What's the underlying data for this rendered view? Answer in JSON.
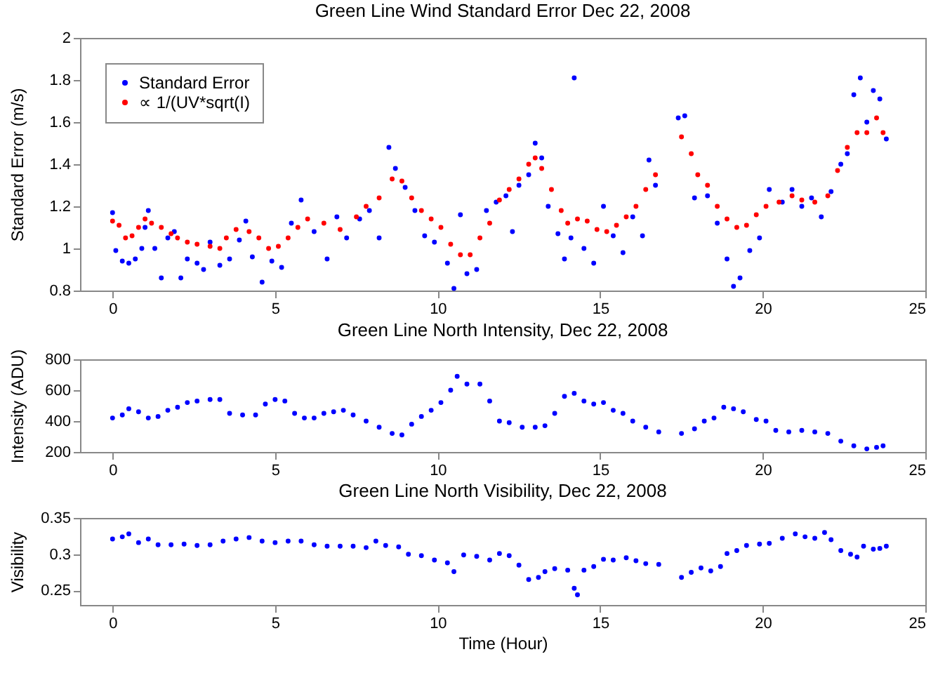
{
  "chart_data": [
    {
      "type": "scatter",
      "title": "Green Line Wind Standard Error Dec 22, 2008",
      "ylabel": "Standard Error (m/s)",
      "xlim": [
        -1,
        25
      ],
      "xticks": [
        0,
        5,
        10,
        15,
        20,
        25
      ],
      "ylim": [
        0.8,
        2
      ],
      "yticks": [
        0.8,
        1,
        1.2,
        1.4,
        1.6,
        1.8,
        2
      ],
      "grid": false,
      "legend": "top left",
      "marker": "circle",
      "series": [
        {
          "name": "Standard Error",
          "color": "#0000ff",
          "x": [
            0,
            0.1,
            0.3,
            0.5,
            0.7,
            0.9,
            1.0,
            1.1,
            1.3,
            1.5,
            1.7,
            1.9,
            2.1,
            2.3,
            2.6,
            2.8,
            3.0,
            3.3,
            3.6,
            3.9,
            4.1,
            4.3,
            4.6,
            4.9,
            5.2,
            5.5,
            5.8,
            6.2,
            6.6,
            6.9,
            7.2,
            7.6,
            7.9,
            8.2,
            8.5,
            8.7,
            9.0,
            9.3,
            9.6,
            9.9,
            10.3,
            10.5,
            10.7,
            10.9,
            11.2,
            11.5,
            11.8,
            12.1,
            12.3,
            12.5,
            12.8,
            13.0,
            13.2,
            13.4,
            13.7,
            13.9,
            14.1,
            14.2,
            14.5,
            14.8,
            15.1,
            15.4,
            15.7,
            16.0,
            16.3,
            16.5,
            16.7,
            17.4,
            17.6,
            17.9,
            18.3,
            18.6,
            18.9,
            19.1,
            19.3,
            19.6,
            19.9,
            20.2,
            20.6,
            20.9,
            21.2,
            21.5,
            21.8,
            22.1,
            22.4,
            22.6,
            22.8,
            23.0,
            23.2,
            23.4,
            23.6,
            23.8
          ],
          "values": [
            1.17,
            0.99,
            0.94,
            0.93,
            0.95,
            1.0,
            1.1,
            1.18,
            1.0,
            0.86,
            1.05,
            1.08,
            0.86,
            0.95,
            0.93,
            0.9,
            1.03,
            0.92,
            0.95,
            1.04,
            1.13,
            0.96,
            0.84,
            0.94,
            0.91,
            1.12,
            1.23,
            1.08,
            0.95,
            1.15,
            1.05,
            1.14,
            1.18,
            1.05,
            1.48,
            1.38,
            1.29,
            1.18,
            1.06,
            1.03,
            0.93,
            0.81,
            1.16,
            0.88,
            0.9,
            1.18,
            1.22,
            1.25,
            1.08,
            1.3,
            1.35,
            1.5,
            1.43,
            1.2,
            1.07,
            0.95,
            1.05,
            1.81,
            1.0,
            0.93,
            1.2,
            1.06,
            0.98,
            1.15,
            1.06,
            1.42,
            1.3,
            1.62,
            1.63,
            1.24,
            1.25,
            1.12,
            0.95,
            0.82,
            0.86,
            0.99,
            1.05,
            1.28,
            1.22,
            1.28,
            1.2,
            1.24,
            1.15,
            1.27,
            1.4,
            1.45,
            1.73,
            1.81,
            1.6,
            1.75,
            1.71,
            1.52
          ]
        },
        {
          "name": "∝ 1/(UV*sqrt(I)",
          "color": "#ff0000",
          "x": [
            0,
            0.2,
            0.4,
            0.6,
            0.8,
            1.0,
            1.2,
            1.5,
            1.8,
            2.0,
            2.3,
            2.6,
            3.0,
            3.3,
            3.5,
            3.8,
            4.2,
            4.5,
            4.8,
            5.1,
            5.4,
            5.7,
            6.0,
            6.5,
            7.0,
            7.5,
            7.8,
            8.2,
            8.6,
            8.9,
            9.2,
            9.5,
            9.8,
            10.1,
            10.4,
            10.7,
            11.0,
            11.3,
            11.6,
            11.9,
            12.2,
            12.5,
            12.8,
            13.0,
            13.2,
            13.5,
            13.8,
            14.0,
            14.3,
            14.6,
            14.9,
            15.2,
            15.5,
            15.8,
            16.1,
            16.4,
            16.7,
            17.5,
            17.8,
            18.0,
            18.3,
            18.6,
            18.9,
            19.2,
            19.5,
            19.8,
            20.1,
            20.5,
            20.9,
            21.2,
            21.6,
            22.0,
            22.3,
            22.6,
            22.9,
            23.2,
            23.5,
            23.7
          ],
          "values": [
            1.13,
            1.11,
            1.05,
            1.06,
            1.1,
            1.14,
            1.12,
            1.1,
            1.07,
            1.05,
            1.03,
            1.02,
            1.01,
            1.0,
            1.05,
            1.09,
            1.08,
            1.05,
            1.0,
            1.01,
            1.05,
            1.1,
            1.14,
            1.12,
            1.09,
            1.15,
            1.2,
            1.24,
            1.33,
            1.32,
            1.24,
            1.18,
            1.14,
            1.1,
            1.02,
            0.97,
            0.97,
            1.05,
            1.12,
            1.23,
            1.28,
            1.33,
            1.4,
            1.43,
            1.38,
            1.28,
            1.18,
            1.12,
            1.14,
            1.13,
            1.09,
            1.08,
            1.11,
            1.15,
            1.2,
            1.28,
            1.35,
            1.53,
            1.45,
            1.35,
            1.3,
            1.2,
            1.14,
            1.1,
            1.11,
            1.16,
            1.2,
            1.22,
            1.25,
            1.23,
            1.22,
            1.25,
            1.37,
            1.48,
            1.55,
            1.55,
            1.62,
            1.55
          ]
        }
      ]
    },
    {
      "type": "scatter",
      "title": "Green Line North Intensity, Dec 22, 2008",
      "ylabel": "Intensity (ADU)",
      "xlim": [
        -1,
        25
      ],
      "xticks": [
        0,
        5,
        10,
        15,
        20,
        25
      ],
      "ylim": [
        200,
        800
      ],
      "yticks": [
        200,
        400,
        600,
        800
      ],
      "grid": false,
      "marker": "circle",
      "series": [
        {
          "color": "#0000ff",
          "x": [
            0,
            0.3,
            0.5,
            0.8,
            1.1,
            1.4,
            1.7,
            2.0,
            2.3,
            2.6,
            3.0,
            3.3,
            3.6,
            4.0,
            4.4,
            4.7,
            5.0,
            5.3,
            5.6,
            5.9,
            6.2,
            6.5,
            6.8,
            7.1,
            7.4,
            7.8,
            8.2,
            8.6,
            8.9,
            9.2,
            9.5,
            9.8,
            10.1,
            10.4,
            10.6,
            10.9,
            11.3,
            11.6,
            11.9,
            12.2,
            12.6,
            13.0,
            13.3,
            13.6,
            13.9,
            14.2,
            14.5,
            14.8,
            15.1,
            15.4,
            15.7,
            16.0,
            16.4,
            16.8,
            17.5,
            17.9,
            18.2,
            18.5,
            18.8,
            19.1,
            19.4,
            19.8,
            20.1,
            20.4,
            20.8,
            21.2,
            21.6,
            22.0,
            22.4,
            22.8,
            23.2,
            23.5,
            23.7
          ],
          "values": [
            420,
            440,
            480,
            460,
            420,
            430,
            470,
            490,
            520,
            530,
            540,
            540,
            450,
            440,
            440,
            510,
            540,
            530,
            450,
            420,
            420,
            450,
            460,
            470,
            440,
            400,
            360,
            320,
            310,
            380,
            430,
            470,
            520,
            600,
            690,
            640,
            640,
            530,
            400,
            390,
            360,
            360,
            370,
            450,
            560,
            580,
            530,
            510,
            520,
            470,
            450,
            400,
            360,
            330,
            320,
            350,
            400,
            420,
            490,
            480,
            460,
            410,
            400,
            340,
            330,
            340,
            330,
            320,
            270,
            240,
            220,
            230,
            240
          ]
        }
      ]
    },
    {
      "type": "scatter",
      "title": "Green Line North Visibility, Dec 22, 2008",
      "xlabel": "Time (Hour)",
      "ylabel": "Visibility",
      "xlim": [
        -1,
        25
      ],
      "xticks": [
        0,
        5,
        10,
        15,
        20,
        25
      ],
      "ylim": [
        0.23,
        0.35
      ],
      "yticks": [
        0.25,
        0.3,
        0.35
      ],
      "grid": false,
      "marker": "circle",
      "series": [
        {
          "color": "#0000ff",
          "x": [
            0,
            0.3,
            0.5,
            0.8,
            1.1,
            1.4,
            1.8,
            2.2,
            2.6,
            3.0,
            3.4,
            3.8,
            4.2,
            4.6,
            5.0,
            5.4,
            5.8,
            6.2,
            6.6,
            7.0,
            7.4,
            7.8,
            8.1,
            8.4,
            8.8,
            9.1,
            9.5,
            9.9,
            10.3,
            10.5,
            10.8,
            11.2,
            11.6,
            11.9,
            12.2,
            12.5,
            12.8,
            13.1,
            13.3,
            13.6,
            14.0,
            14.2,
            14.3,
            14.5,
            14.8,
            15.1,
            15.4,
            15.8,
            16.1,
            16.4,
            16.8,
            17.5,
            17.8,
            18.1,
            18.4,
            18.7,
            18.9,
            19.2,
            19.5,
            19.9,
            20.2,
            20.6,
            21.0,
            21.3,
            21.6,
            21.9,
            22.1,
            22.4,
            22.7,
            22.9,
            23.1,
            23.4,
            23.6,
            23.8
          ],
          "values": [
            0.321,
            0.324,
            0.328,
            0.316,
            0.321,
            0.313,
            0.313,
            0.314,
            0.312,
            0.313,
            0.318,
            0.321,
            0.323,
            0.318,
            0.316,
            0.318,
            0.318,
            0.313,
            0.311,
            0.311,
            0.311,
            0.309,
            0.318,
            0.312,
            0.31,
            0.3,
            0.298,
            0.292,
            0.288,
            0.276,
            0.299,
            0.297,
            0.292,
            0.301,
            0.298,
            0.285,
            0.265,
            0.268,
            0.276,
            0.28,
            0.278,
            0.253,
            0.244,
            0.278,
            0.283,
            0.293,
            0.292,
            0.295,
            0.291,
            0.287,
            0.286,
            0.268,
            0.275,
            0.281,
            0.277,
            0.283,
            0.301,
            0.305,
            0.312,
            0.314,
            0.315,
            0.322,
            0.328,
            0.324,
            0.322,
            0.33,
            0.32,
            0.305,
            0.3,
            0.296,
            0.311,
            0.307,
            0.308,
            0.311
          ]
        }
      ]
    }
  ]
}
